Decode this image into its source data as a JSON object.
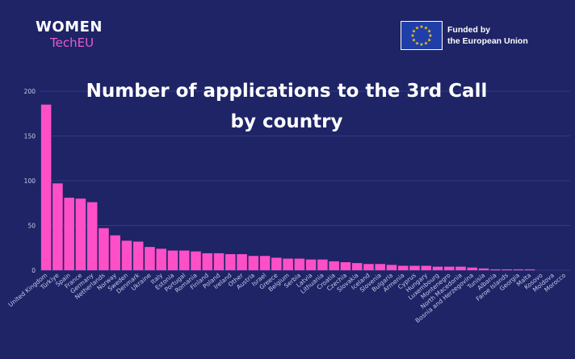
{
  "header": {
    "logo_line1": "WOMEN",
    "logo_line2": "TechEU",
    "eu_line1": "Funded by",
    "eu_line2": "the European Union"
  },
  "colors": {
    "background": "#1e2466",
    "bar": "#ff4fc7",
    "grid": "#323a86",
    "tick_text": "#c8cbe6",
    "logo_accent": "#e85bd2",
    "eu_blue": "#1f3ea8",
    "eu_star": "#ffcc00"
  },
  "chart_data": {
    "type": "bar",
    "title_line1": "Number of applications to the 3rd Call",
    "title_line2": "by country",
    "xlabel": "",
    "ylabel": "",
    "ylim": [
      0,
      200
    ],
    "yticks": [
      0,
      50,
      100,
      150,
      200
    ],
    "grid": true,
    "categories": [
      "United Kingdom",
      "Türkiye",
      "Spain",
      "France",
      "Germany",
      "Netherlands",
      "Norway",
      "Sweden",
      "Denmark",
      "Ukraine",
      "Italy",
      "Estonia",
      "Portugal",
      "Romania",
      "Finland",
      "Poland",
      "Ireland",
      "Other",
      "Austria",
      "Israel",
      "Greece",
      "Belgium",
      "Serbia",
      "Latvia",
      "Lithuania",
      "Croatia",
      "Czechia",
      "Slovakia",
      "Iceland",
      "Slovenia",
      "Bulgaria",
      "Armenia",
      "Cyprus",
      "Hungary",
      "Luxembourg",
      "Montenegro",
      "North Macedonia",
      "Bosnia and Herzegovina",
      "Tunisia",
      "Albania",
      "Faroe Islands",
      "Georgia",
      "Malta",
      "Kosovo",
      "Moldova",
      "Morocco"
    ],
    "values": [
      185,
      97,
      81,
      80,
      76,
      47,
      39,
      33,
      32,
      26,
      24,
      22,
      22,
      21,
      19,
      19,
      18,
      18,
      16,
      16,
      14,
      13,
      13,
      12,
      12,
      10,
      9,
      8,
      7,
      7,
      6,
      5,
      5,
      5,
      4,
      4,
      4,
      3,
      2,
      1,
      1,
      1,
      1,
      0,
      0,
      0
    ]
  }
}
